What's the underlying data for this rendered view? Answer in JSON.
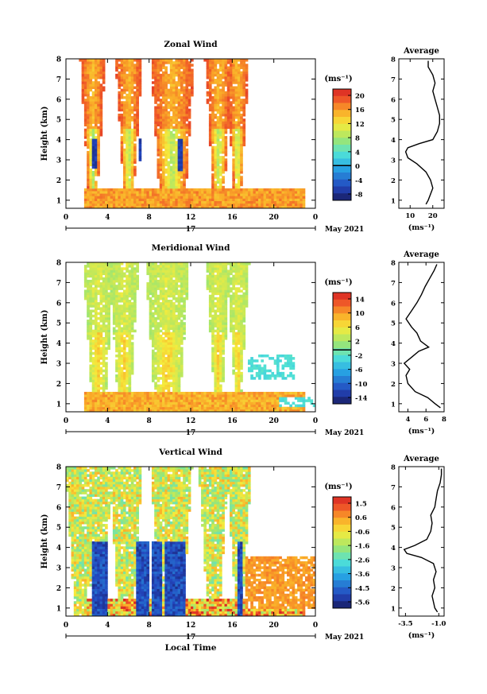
{
  "chart_data": [
    {
      "type": "heatmap",
      "title": "Zonal Wind",
      "ylabel": "Height (km)",
      "xlabel": "",
      "x_ticks": [
        "0",
        "4",
        "8",
        "12",
        "16",
        "20",
        "0"
      ],
      "y_ticks": [
        "1",
        "2",
        "3",
        "4",
        "5",
        "6",
        "7",
        "8"
      ],
      "xlim": [
        0,
        24
      ],
      "ylim": [
        0.6,
        8
      ],
      "date_day": "17",
      "date_label": "May 2021",
      "colorbar": {
        "unit": "(ms⁻¹)",
        "ticks": [
          "20",
          "16",
          "12",
          "8",
          "4",
          "0",
          "-4",
          "-8"
        ],
        "range": [
          -10,
          22
        ],
        "marker_value": 0
      },
      "pattern": {
        "bands": [
          [
            2.2,
            3.0
          ],
          [
            5.6,
            6.5
          ],
          [
            9.0,
            11.5
          ],
          [
            14.2,
            15.2
          ],
          [
            16.2,
            16.8
          ]
        ],
        "base_max": 1.6,
        "low_value": 16,
        "high_value": 19,
        "core_value": 8,
        "dark_patches": [
          [
            2.6,
            3.0,
            2.6,
            4.0
          ],
          [
            6.9,
            7.3,
            3.0,
            4.1
          ],
          [
            10.8,
            11.2,
            2.5,
            4.0
          ]
        ],
        "dark_value": -8
      },
      "profile": {
        "title": "Average",
        "x_ticks": [
          "10",
          "20"
        ],
        "xlim": [
          5,
          25
        ],
        "xunit": "(ms⁻¹)",
        "heights": [
          0.8,
          1.0,
          1.3,
          1.6,
          2.0,
          2.4,
          2.8,
          3.1,
          3.4,
          3.6,
          3.8,
          4.0,
          4.4,
          4.8,
          5.2,
          5.6,
          6.0,
          6.4,
          6.8,
          7.2,
          7.6,
          7.9
        ],
        "values": [
          17,
          18,
          19,
          20,
          19,
          17,
          13,
          9,
          8,
          9,
          14,
          20,
          22,
          23,
          23,
          22,
          21,
          20,
          21,
          20,
          18,
          18
        ]
      }
    },
    {
      "type": "heatmap",
      "title": "Meridional Wind",
      "ylabel": "Height (km)",
      "xlabel": "",
      "x_ticks": [
        "0",
        "4",
        "8",
        "12",
        "16",
        "20",
        "0"
      ],
      "y_ticks": [
        "1",
        "2",
        "3",
        "4",
        "5",
        "6",
        "7",
        "8"
      ],
      "xlim": [
        0,
        24
      ],
      "ylim": [
        0.6,
        8
      ],
      "date_day": "17",
      "date_label": "May 2021",
      "colorbar": {
        "unit": "(ms⁻¹)",
        "ticks": [
          "14",
          "10",
          "6",
          "2",
          "-2",
          "-6",
          "-10",
          "-14"
        ],
        "range": [
          -16,
          17
        ],
        "marker_value": 0
      },
      "pattern": {
        "bands": [
          [
            2.5,
            3.8
          ],
          [
            5.0,
            6.2
          ],
          [
            8.5,
            11.0
          ],
          [
            14.3,
            15.0
          ],
          [
            16.3,
            16.8
          ]
        ],
        "base_max": 1.6,
        "low_value": 10,
        "high_value": 3,
        "core_value": 8,
        "cyan_patches": [
          [
            17.5,
            22.0,
            2.2,
            3.4
          ],
          [
            20.5,
            24.0,
            0.8,
            1.3
          ]
        ],
        "cyan_value": -3
      },
      "profile": {
        "title": "Average",
        "x_ticks": [
          "4",
          "6",
          "8"
        ],
        "xlim": [
          3,
          8
        ],
        "xunit": "(ms⁻¹)",
        "heights": [
          0.8,
          1.0,
          1.3,
          1.6,
          2.0,
          2.4,
          2.7,
          3.0,
          3.3,
          3.6,
          3.8,
          4.1,
          4.5,
          4.8,
          5.2,
          5.6,
          6.0,
          6.4,
          6.8,
          7.2,
          7.6,
          7.9
        ],
        "values": [
          7.6,
          7.0,
          6.2,
          4.8,
          4.0,
          3.8,
          4.2,
          3.6,
          4.4,
          5.2,
          6.3,
          5.4,
          5.0,
          4.4,
          3.8,
          4.4,
          5.0,
          5.5,
          5.9,
          6.4,
          6.9,
          7.2
        ]
      }
    },
    {
      "type": "heatmap",
      "title": "Vertical Wind",
      "ylabel": "Height (km)",
      "xlabel": "Local Time",
      "x_ticks": [
        "0",
        "4",
        "8",
        "12",
        "16",
        "20",
        "0"
      ],
      "y_ticks": [
        "1",
        "2",
        "3",
        "4",
        "5",
        "6",
        "7",
        "8"
      ],
      "xlim": [
        0,
        24
      ],
      "ylim": [
        0.6,
        8
      ],
      "date_day": "17",
      "date_label": "May 2021",
      "colorbar": {
        "unit": "(ms⁻¹)",
        "ticks": [
          "1.5",
          "0.6",
          "-0.6",
          "-1.6",
          "-2.6",
          "-3.6",
          "-4.5",
          "-5.6"
        ],
        "range": [
          -6.3,
          2.2
        ],
        "marker_value": null
      },
      "pattern": {
        "bands": [
          [
            0.8,
            2.0
          ],
          [
            2.5,
            3.6
          ],
          [
            5.0,
            6.5
          ],
          [
            9.0,
            11.3
          ],
          [
            13.6,
            14.8
          ],
          [
            16.3,
            17.0
          ]
        ],
        "base_max": 1.5,
        "low_value": 0.2,
        "high_value": -1.0,
        "core_value": -1.2,
        "dark_columns": [
          [
            2.4,
            4.0
          ],
          [
            6.7,
            8.0
          ],
          [
            8.3,
            9.3
          ],
          [
            9.5,
            11.5
          ],
          [
            16.5,
            17.0
          ]
        ],
        "dark_top": 4.3,
        "dark_value": -5.8,
        "orange_region": [
          17.2,
          24.0,
          1.0,
          3.6
        ],
        "orange_value": 0.6
      },
      "profile": {
        "title": "Average",
        "x_ticks": [
          "-3.5",
          "-1.0"
        ],
        "xlim": [
          -4.0,
          -0.6
        ],
        "xunit": "(ms⁻¹)",
        "heights": [
          0.8,
          1.0,
          1.3,
          1.6,
          2.0,
          2.4,
          2.8,
          3.2,
          3.5,
          3.7,
          3.9,
          4.1,
          4.4,
          4.8,
          5.2,
          5.6,
          6.0,
          6.4,
          6.8,
          7.2,
          7.6,
          7.9
        ],
        "values": [
          -1.1,
          -1.3,
          -1.4,
          -1.5,
          -1.3,
          -1.4,
          -1.2,
          -1.4,
          -2.3,
          -3.4,
          -3.6,
          -2.8,
          -1.9,
          -1.6,
          -1.5,
          -1.6,
          -1.3,
          -1.2,
          -1.1,
          -0.9,
          -0.8,
          -0.8
        ]
      }
    }
  ]
}
